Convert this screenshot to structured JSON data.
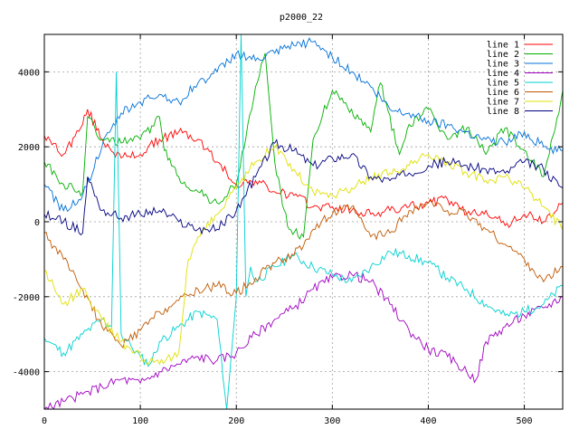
{
  "chart_data": {
    "type": "line",
    "title": "p2000_22",
    "xlabel": "",
    "ylabel": "",
    "xlim": [
      0,
      540
    ],
    "ylim": [
      -5000,
      5000
    ],
    "x_ticks": [
      0,
      100,
      200,
      300,
      400,
      500
    ],
    "y_ticks": [
      -4000,
      -2000,
      0,
      2000,
      4000
    ],
    "grid": true,
    "legend_position": "top-right",
    "series": [
      {
        "name": "line 1",
        "color": "#ff0000",
        "x": [
          0,
          20,
          40,
          45,
          60,
          80,
          100,
          120,
          140,
          160,
          180,
          200,
          220,
          240,
          260,
          280,
          300,
          320,
          340,
          360,
          380,
          400,
          420,
          440,
          460,
          480,
          500,
          520,
          540
        ],
        "y": [
          2300,
          1800,
          2600,
          3000,
          2200,
          1700,
          1800,
          2200,
          2400,
          2200,
          1600,
          1000,
          1100,
          800,
          700,
          400,
          400,
          300,
          200,
          300,
          400,
          500,
          600,
          200,
          300,
          -100,
          200,
          0,
          500
        ]
      },
      {
        "name": "line 2",
        "color": "#00b000",
        "x": [
          0,
          20,
          40,
          45,
          60,
          80,
          100,
          120,
          125,
          140,
          160,
          180,
          200,
          220,
          230,
          240,
          250,
          255,
          270,
          280,
          300,
          340,
          350,
          370,
          380,
          400,
          420,
          440,
          460,
          480,
          500,
          520,
          530,
          540
        ],
        "y": [
          1600,
          1000,
          800,
          2800,
          2200,
          2100,
          2200,
          2800,
          1900,
          1200,
          800,
          500,
          1000,
          3600,
          4500,
          1600,
          300,
          -200,
          -400,
          2200,
          3500,
          2400,
          3700,
          1800,
          2600,
          3000,
          2200,
          2500,
          1800,
          2500,
          1900,
          1200,
          2300,
          3500
        ]
      },
      {
        "name": "line 3",
        "color": "#0070d8",
        "x": [
          0,
          20,
          40,
          60,
          80,
          100,
          120,
          140,
          160,
          180,
          200,
          220,
          240,
          260,
          280,
          300,
          320,
          340,
          360,
          380,
          400,
          420,
          440,
          460,
          480,
          500,
          520,
          540
        ],
        "y": [
          1000,
          300,
          700,
          2000,
          2900,
          3200,
          3400,
          3200,
          3700,
          4000,
          4500,
          4300,
          4500,
          4700,
          4800,
          4400,
          4000,
          3600,
          3000,
          2900,
          2700,
          2600,
          2400,
          2200,
          2100,
          2400,
          2000,
          1900
        ]
      },
      {
        "name": "line 4",
        "color": "#a000c0",
        "x": [
          0,
          20,
          40,
          60,
          80,
          100,
          120,
          140,
          160,
          180,
          200,
          220,
          240,
          260,
          280,
          300,
          320,
          340,
          360,
          380,
          400,
          420,
          440,
          450,
          460,
          480,
          500,
          520,
          540
        ],
        "y": [
          -5000,
          -4800,
          -4600,
          -4400,
          -4200,
          -4300,
          -4000,
          -3800,
          -3600,
          -3700,
          -3500,
          -3000,
          -2600,
          -2300,
          -1800,
          -1500,
          -1400,
          -1600,
          -2200,
          -2900,
          -3400,
          -3600,
          -4000,
          -4200,
          -3200,
          -2800,
          -2500,
          -2300,
          -2000
        ]
      },
      {
        "name": "line 5",
        "color": "#00d0d0",
        "x": [
          0,
          20,
          40,
          60,
          70,
          75,
          80,
          90,
          100,
          110,
          120,
          140,
          160,
          180,
          190,
          200,
          205,
          210,
          215,
          220,
          240,
          260,
          280,
          300,
          320,
          340,
          360,
          380,
          400,
          420,
          440,
          460,
          480,
          500,
          520,
          540
        ],
        "y": [
          -3100,
          -3500,
          -3000,
          -2600,
          -2800,
          4000,
          -3000,
          -3300,
          -3600,
          -3800,
          -3200,
          -2800,
          -2400,
          -2600,
          -5000,
          -2000,
          5000,
          -2000,
          -1200,
          -1600,
          -1200,
          -900,
          -1200,
          -1400,
          -1600,
          -1200,
          -800,
          -900,
          -1100,
          -1500,
          -1800,
          -2200,
          -2500,
          -2400,
          -2200,
          -1700
        ]
      },
      {
        "name": "line 6",
        "color": "#c05800",
        "x": [
          0,
          20,
          40,
          60,
          80,
          100,
          120,
          140,
          160,
          180,
          200,
          220,
          240,
          260,
          280,
          300,
          320,
          340,
          360,
          380,
          400,
          420,
          440,
          460,
          480,
          500,
          520,
          540
        ],
        "y": [
          -300,
          -1000,
          -1800,
          -2800,
          -3300,
          -2900,
          -2400,
          -2100,
          -1800,
          -1700,
          -1900,
          -1500,
          -1100,
          -900,
          -200,
          200,
          400,
          -400,
          -300,
          300,
          500,
          300,
          200,
          -200,
          -600,
          -1000,
          -1600,
          -1200
        ]
      },
      {
        "name": "line 7",
        "color": "#e0e000",
        "x": [
          0,
          20,
          40,
          60,
          80,
          100,
          120,
          140,
          150,
          160,
          180,
          200,
          220,
          240,
          260,
          280,
          300,
          320,
          340,
          360,
          380,
          400,
          420,
          440,
          460,
          480,
          500,
          520,
          540
        ],
        "y": [
          -1300,
          -2200,
          -1800,
          -2600,
          -3200,
          -3600,
          -3800,
          -3500,
          -1000,
          -400,
          200,
          900,
          1600,
          2000,
          1400,
          800,
          700,
          900,
          1200,
          1300,
          1500,
          1800,
          1600,
          1300,
          1100,
          1200,
          900,
          400,
          -200
        ]
      },
      {
        "name": "line 8",
        "color": "#000080",
        "x": [
          0,
          20,
          40,
          45,
          60,
          80,
          100,
          120,
          140,
          160,
          180,
          200,
          220,
          240,
          260,
          280,
          300,
          320,
          340,
          360,
          380,
          400,
          420,
          440,
          460,
          480,
          500,
          520,
          540
        ],
        "y": [
          200,
          0,
          -300,
          1200,
          300,
          100,
          200,
          300,
          0,
          -200,
          -200,
          300,
          1200,
          2100,
          1900,
          1500,
          1700,
          1800,
          1200,
          1100,
          1300,
          1500,
          1600,
          1500,
          1400,
          1300,
          1600,
          1400,
          900
        ]
      }
    ]
  }
}
